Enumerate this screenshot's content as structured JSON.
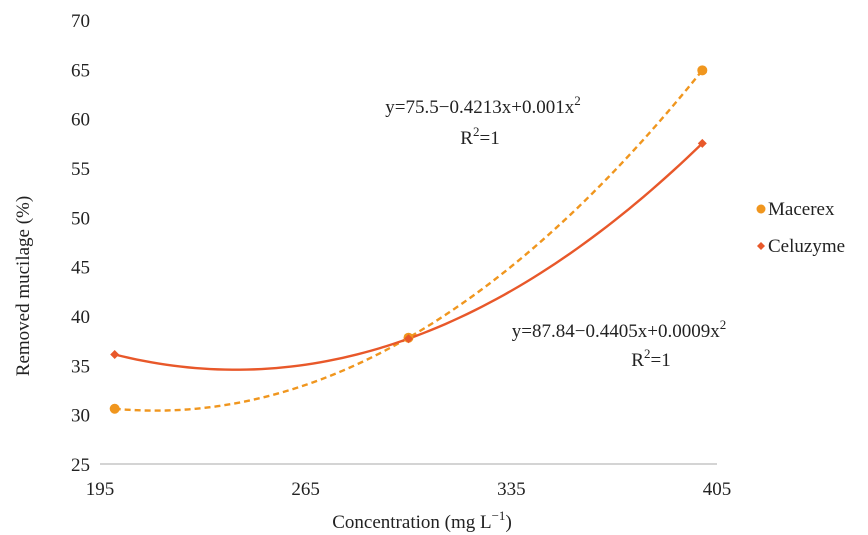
{
  "chart_data": {
    "type": "scatter",
    "xlabel": "Concentration (mg L",
    "xlabel_sup": "−1",
    "xlabel_end": ")",
    "ylabel": "Removed mucilage  (%)",
    "xlim": [
      195,
      405
    ],
    "ylim": [
      25,
      70
    ],
    "xticks": [
      195,
      265,
      335,
      405
    ],
    "yticks": [
      25,
      30,
      35,
      40,
      45,
      50,
      55,
      60,
      65,
      70
    ],
    "grid": false,
    "legend_position": "right",
    "series": [
      {
        "name": "Macerex",
        "color": "#f0961e",
        "marker": "circle",
        "line": "dashed",
        "x": [
          200,
          300,
          400
        ],
        "y": [
          30.6,
          37.8,
          64.9
        ],
        "equation": "y=75.5−0.4213x+0.001x",
        "equation_sup": "2",
        "r2_label": "R",
        "r2_sup": "2",
        "r2_value": "=1"
      },
      {
        "name": "Celuzyme",
        "color": "#e8582a",
        "marker": "diamond",
        "line": "solid",
        "x": [
          200,
          300,
          400
        ],
        "y": [
          36.1,
          37.7,
          57.5
        ],
        "equation": "y=87.84−0.4405x+0.0009x",
        "equation_sup": "2",
        "r2_label": "R",
        "r2_sup": "2",
        "r2_value": "=1"
      }
    ]
  }
}
